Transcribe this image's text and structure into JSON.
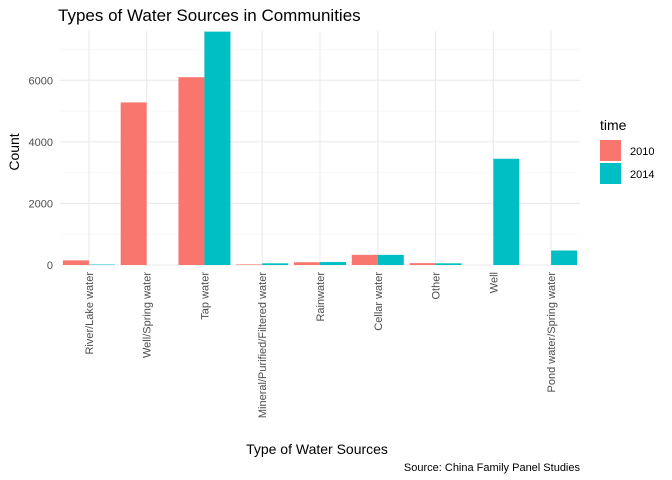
{
  "chart_data": {
    "type": "bar",
    "title": "Types of Water Sources in Communities",
    "xlabel": "Type of Water Sources",
    "ylabel": "Count",
    "caption": "Source: China Family Panel Studies",
    "legend_title": "time",
    "legend_position": "right",
    "grid": true,
    "ylim": [
      0,
      7600
    ],
    "y_ticks": [
      0,
      2000,
      4000,
      6000
    ],
    "y_tick_labels": [
      "0",
      "2000",
      "4000",
      "6000"
    ],
    "categories": [
      "River/Lake water",
      "Well/Spring water",
      "Tap water",
      "Mineral/Purified/Filtered water",
      "Rainwater",
      "Cellar water",
      "Other",
      "Well",
      "Pond water/Spring water"
    ],
    "series": [
      {
        "name": "2010",
        "color": "#F8766D",
        "values": [
          150,
          5280,
          6100,
          20,
          90,
          330,
          60,
          null,
          null
        ]
      },
      {
        "name": "2014",
        "color": "#00BFC4",
        "values": [
          15,
          null,
          7580,
          55,
          95,
          330,
          55,
          3450,
          470
        ]
      }
    ]
  }
}
